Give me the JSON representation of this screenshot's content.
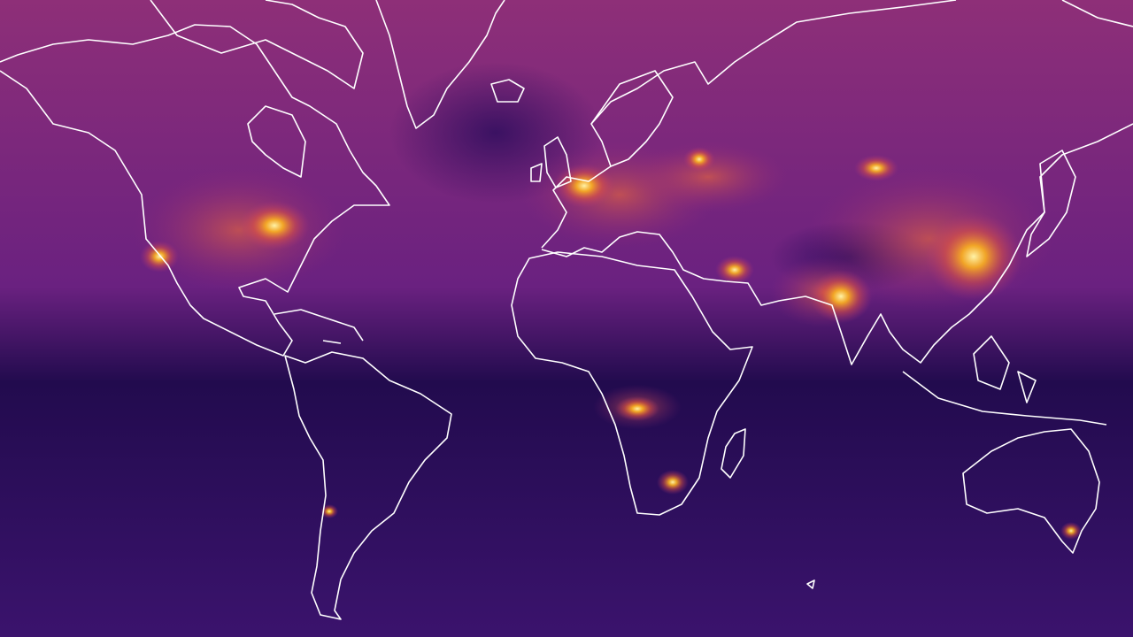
{
  "map": {
    "colormap": [
      "#1a0843",
      "#3b0f70",
      "#7a2a80",
      "#b5367a",
      "#f06a3a",
      "#fcb21f",
      "#fcfdbf"
    ],
    "background_top": "#8e2f78",
    "background_mid": "#6a2180",
    "background_equator": "#220b4e",
    "background_south": "#3b136d",
    "coastline_color": "#ffffff"
  }
}
